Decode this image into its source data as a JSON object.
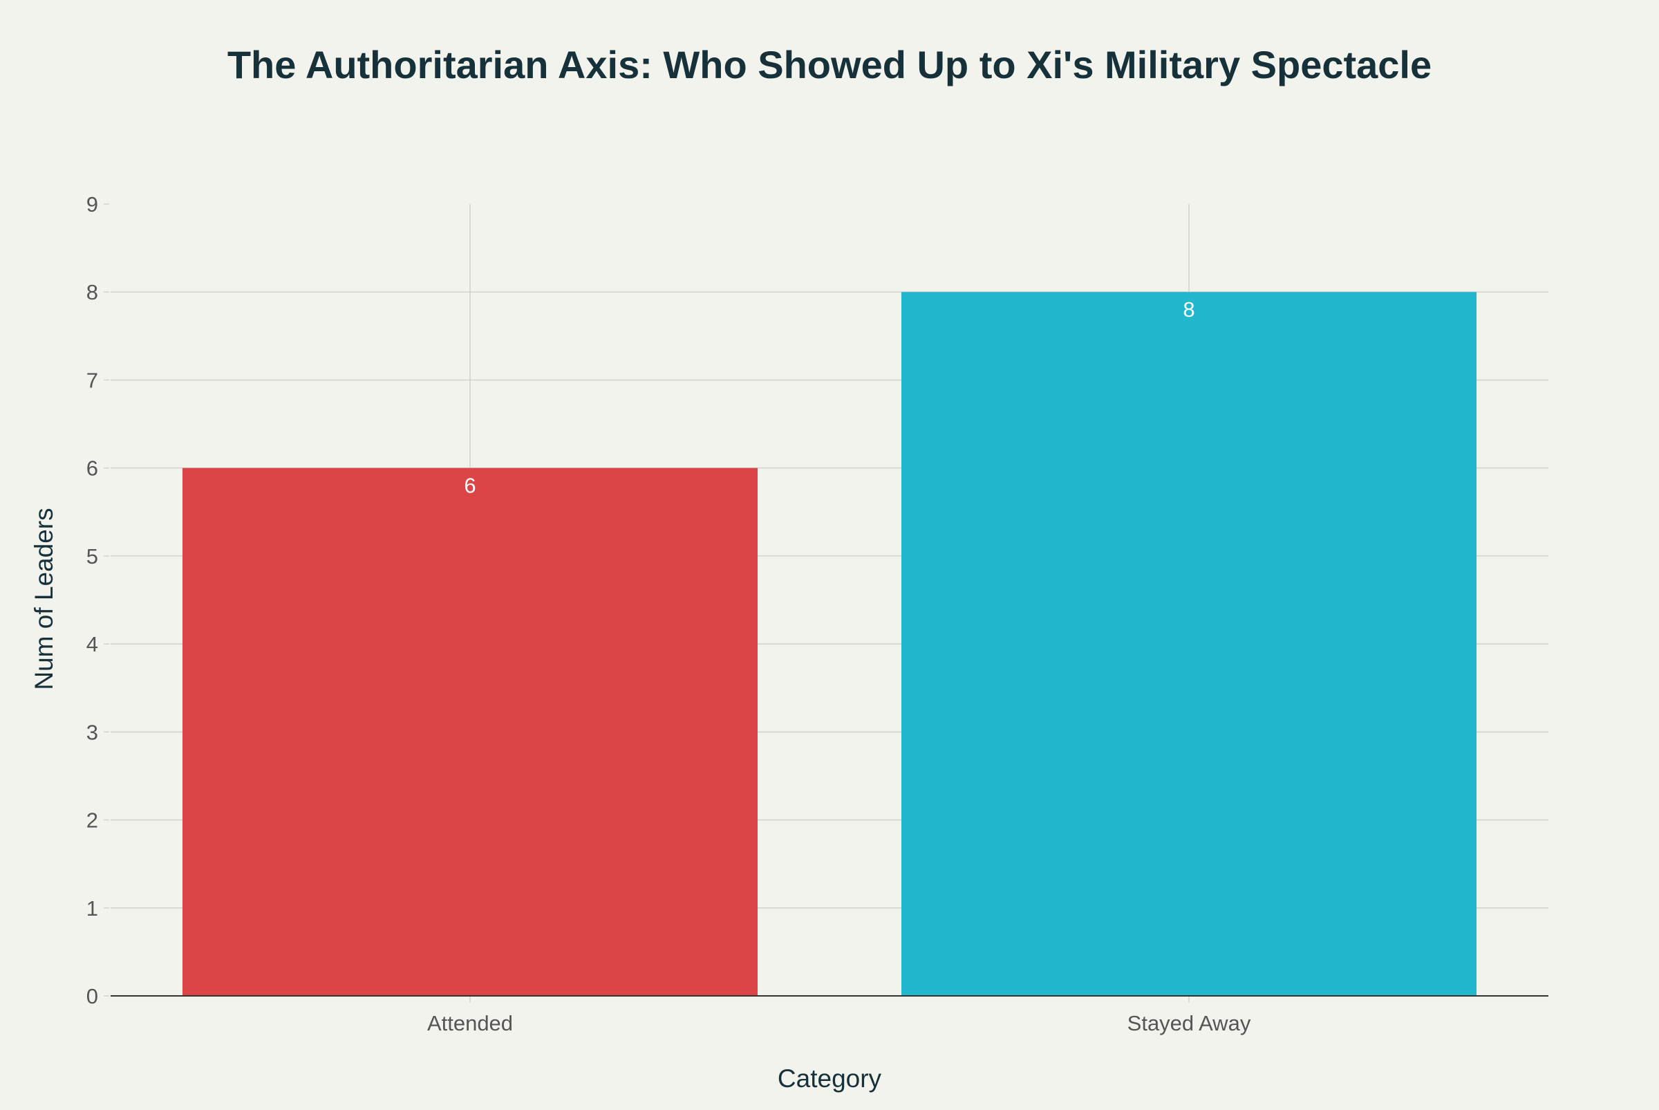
{
  "chart_data": {
    "type": "bar",
    "title": "The Authoritarian Axis: Who Showed Up to Xi's Military Spectacle",
    "xlabel": "Category",
    "ylabel": "Num of Leaders",
    "categories": [
      "Attended",
      "Stayed Away"
    ],
    "values": [
      6,
      8
    ],
    "data_labels": [
      "6",
      "8"
    ],
    "colors": [
      "#dc4547",
      "#21b7cd"
    ],
    "ylim": [
      0,
      9
    ],
    "yticks": [
      0,
      1,
      2,
      3,
      4,
      5,
      6,
      7,
      8,
      9
    ],
    "grid": true,
    "legend": "none"
  },
  "colors": {
    "background": "#f3f3ee",
    "grid": "#d2d2cf",
    "axis_line": "#333333",
    "title": "#163139",
    "tick_text": "#555555"
  }
}
